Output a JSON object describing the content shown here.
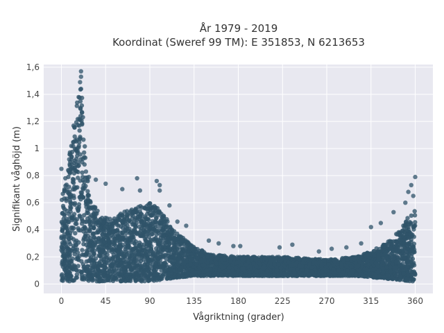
{
  "chart_data": {
    "type": "scatter",
    "title_line1": "År 1979 - 2019",
    "title_line2": "Koordinat (Sweref 99 TM): E 351853, N 6213653",
    "xlabel": "Vågriktning (grader)",
    "ylabel": "Signifikant våghöjd (m)",
    "xlim": [
      -18,
      378
    ],
    "ylim": [
      -0.07,
      1.62
    ],
    "xticks": [
      0,
      45,
      90,
      135,
      180,
      225,
      270,
      315,
      360
    ],
    "xtick_labels": [
      "0",
      "45",
      "90",
      "135",
      "180",
      "225",
      "270",
      "315",
      "360"
    ],
    "yticks": [
      0,
      0.2,
      0.4,
      0.6,
      0.8,
      1.0,
      1.2,
      1.4,
      1.6
    ],
    "ytick_labels": [
      "0",
      "0,2",
      "0,4",
      "0,6",
      "0,8",
      "1",
      "1,2",
      "1,4",
      "1,6"
    ],
    "grid": true,
    "marker_color": "#2f5369",
    "plot_bg": "#e8e8f0",
    "envelope": {
      "direction": [
        0,
        5,
        10,
        15,
        18,
        20,
        22,
        25,
        30,
        40,
        50,
        60,
        70,
        80,
        90,
        100,
        110,
        120,
        135,
        150,
        180,
        225,
        270,
        300,
        315,
        330,
        345,
        355,
        360
      ],
      "upper_height": [
        0.62,
        0.82,
        1.05,
        1.3,
        1.42,
        1.48,
        1.3,
        0.88,
        0.62,
        0.52,
        0.48,
        0.52,
        0.55,
        0.58,
        0.6,
        0.55,
        0.45,
        0.36,
        0.28,
        0.22,
        0.2,
        0.2,
        0.18,
        0.2,
        0.24,
        0.3,
        0.4,
        0.52,
        0.55
      ],
      "lower_height": [
        0.02,
        0.02,
        0.02,
        0.03,
        0.04,
        0.04,
        0.03,
        0.03,
        0.02,
        0.02,
        0.02,
        0.02,
        0.02,
        0.02,
        0.02,
        0.03,
        0.04,
        0.05,
        0.06,
        0.06,
        0.06,
        0.06,
        0.06,
        0.06,
        0.05,
        0.04,
        0.03,
        0.02,
        0.02
      ]
    },
    "outliers": [
      {
        "x": 0,
        "y": 0.85
      },
      {
        "x": 4,
        "y": 0.78
      },
      {
        "x": 8,
        "y": 0.92
      },
      {
        "x": 20,
        "y": 1.57
      },
      {
        "x": 20,
        "y": 1.53
      },
      {
        "x": 19,
        "y": 1.49
      },
      {
        "x": 20,
        "y": 1.44
      },
      {
        "x": 25,
        "y": 0.83
      },
      {
        "x": 28,
        "y": 0.79
      },
      {
        "x": 35,
        "y": 0.77
      },
      {
        "x": 45,
        "y": 0.74
      },
      {
        "x": 62,
        "y": 0.7
      },
      {
        "x": 77,
        "y": 0.78
      },
      {
        "x": 80,
        "y": 0.69
      },
      {
        "x": 97,
        "y": 0.76
      },
      {
        "x": 100,
        "y": 0.73
      },
      {
        "x": 100,
        "y": 0.69
      },
      {
        "x": 110,
        "y": 0.58
      },
      {
        "x": 118,
        "y": 0.46
      },
      {
        "x": 127,
        "y": 0.43
      },
      {
        "x": 150,
        "y": 0.32
      },
      {
        "x": 160,
        "y": 0.3
      },
      {
        "x": 175,
        "y": 0.28
      },
      {
        "x": 182,
        "y": 0.28
      },
      {
        "x": 222,
        "y": 0.27
      },
      {
        "x": 235,
        "y": 0.29
      },
      {
        "x": 262,
        "y": 0.24
      },
      {
        "x": 275,
        "y": 0.26
      },
      {
        "x": 290,
        "y": 0.27
      },
      {
        "x": 305,
        "y": 0.3
      },
      {
        "x": 315,
        "y": 0.42
      },
      {
        "x": 325,
        "y": 0.45
      },
      {
        "x": 338,
        "y": 0.53
      },
      {
        "x": 350,
        "y": 0.6
      },
      {
        "x": 353,
        "y": 0.68
      },
      {
        "x": 356,
        "y": 0.73
      },
      {
        "x": 358,
        "y": 0.65
      },
      {
        "x": 360,
        "y": 0.79
      }
    ]
  }
}
